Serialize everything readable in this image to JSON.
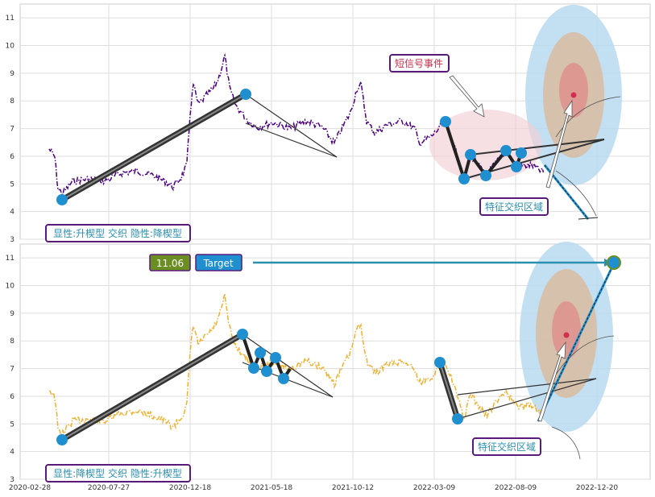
{
  "chart_data": [
    {
      "type": "line",
      "panel": "top",
      "ylim": [
        3,
        11.5
      ],
      "yticks": [
        "3",
        "4",
        "5",
        "6",
        "7",
        "8",
        "9",
        "10",
        "11"
      ],
      "grid": true,
      "series_color": "#4b0082",
      "annotations": {
        "pattern_label": "显性:升楔型 交织 隐性:降楔型",
        "event_label": "短信号事件",
        "zone_label": "特征交织区域"
      }
    },
    {
      "type": "line",
      "panel": "bottom",
      "ylim": [
        3,
        11.5
      ],
      "yticks": [
        "3",
        "4",
        "5",
        "6",
        "7",
        "8",
        "9",
        "10",
        "11"
      ],
      "xticks": [
        "2020-02-28",
        "2020-07-27",
        "2020-12-18",
        "2021-05-18",
        "2021-10-12",
        "2022-03-09",
        "2022-08-09",
        "2022-12-20"
      ],
      "grid": true,
      "series_color": "#f0b030",
      "annotations": {
        "pattern_label": "显性:降楔型 交织 隐性:升楔型",
        "zone_label": "特征交织区域",
        "target_value": "11.06",
        "target_label": "Target"
      }
    }
  ],
  "colors": {
    "accent_blue": "#1f8fd0",
    "label_border": "#5a1a7a",
    "target_green": "#6b8e23",
    "event_red": "#c0304a",
    "zone_cyan": "#2a8fb0"
  }
}
